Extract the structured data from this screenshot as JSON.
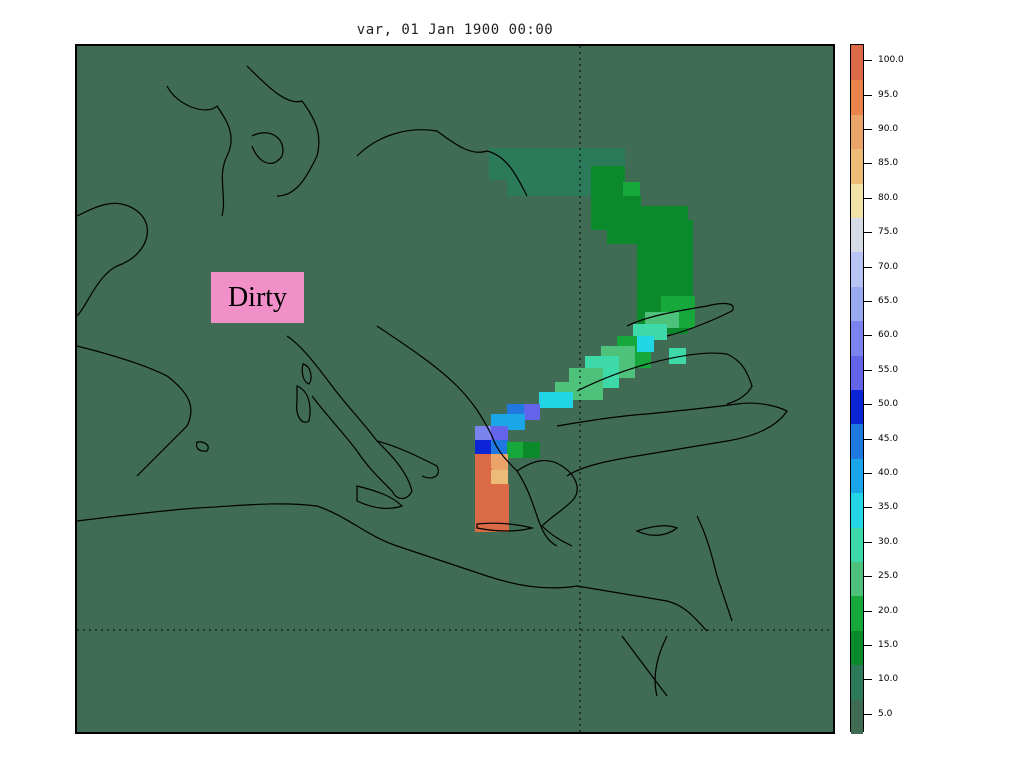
{
  "title": "var, 01 Jan 1900 00:00",
  "annotation": "Dirty",
  "colors": {
    "background": "#406b55",
    "coastline": "#000000",
    "annotation_bg": "#f08fc8"
  },
  "colorbar": {
    "levels": [
      "5.0",
      "10.0",
      "15.0",
      "20.0",
      "25.0",
      "30.0",
      "35.0",
      "40.0",
      "45.0",
      "50.0",
      "55.0",
      "60.0",
      "65.0",
      "70.0",
      "75.0",
      "80.0",
      "85.0",
      "90.0",
      "95.0",
      "100.0"
    ],
    "colors": [
      "#3f6b52",
      "#2b7a5a",
      "#0a8a2a",
      "#16a83a",
      "#4ec27a",
      "#3ed9a8",
      "#22d6e6",
      "#1aa6e8",
      "#1e78e0",
      "#0a24d6",
      "#6464ea",
      "#7b84ee",
      "#9aaaf0",
      "#b8c4f4",
      "#d6dbe8",
      "#f1e2a8",
      "#ecbb78",
      "#eaa46a",
      "#e8844a",
      "#db6a46"
    ]
  },
  "chart_data": {
    "type": "heatmap",
    "title": "var, 01 Jan 1900 00:00",
    "value_range": [
      0,
      105
    ],
    "legend": "right colorbar",
    "grid": "dotted",
    "annotation": "Dirty"
  }
}
